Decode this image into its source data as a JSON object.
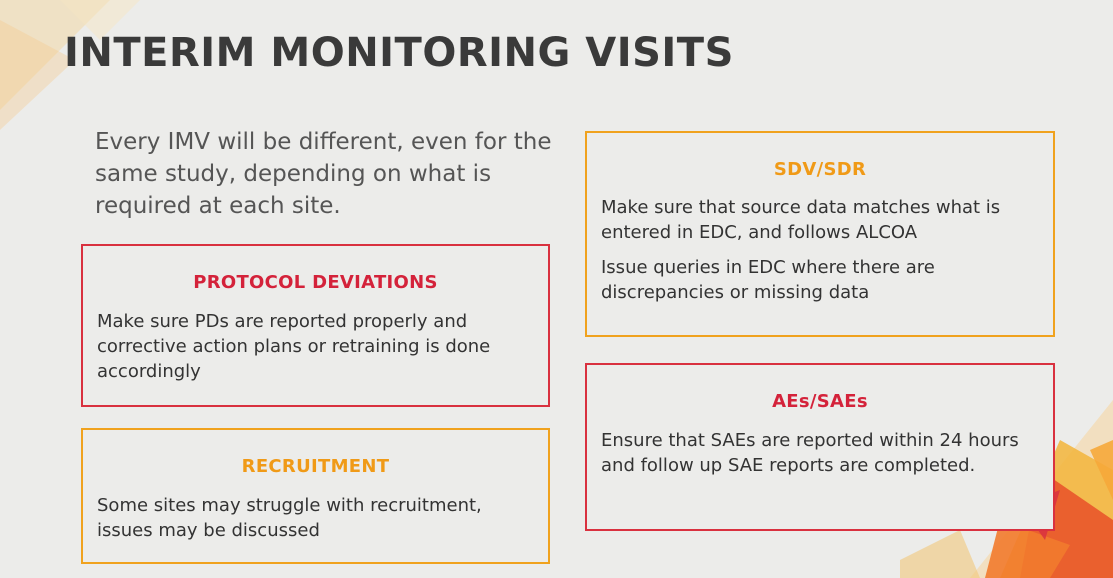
{
  "slide": {
    "title": "INTERIM MONITORING VISITS",
    "intro": "Every IMV will be different, even for the same study, depending on what is required at each site."
  },
  "cards": {
    "protocol_deviations": {
      "heading": "PROTOCOL DEVIATIONS",
      "body": "Make sure PDs are reported properly and corrective action plans or retraining is done accordingly"
    },
    "recruitment": {
      "heading": "RECRUITMENT",
      "body": "Some sites may struggle with recruitment, issues may be discussed"
    },
    "sdv_sdr": {
      "heading": "SDV/SDR",
      "body1": "Make sure that source data matches what is entered in EDC, and follows ALCOA",
      "body2": "Issue queries in EDC where there are discrepancies or missing data"
    },
    "aes_saes": {
      "heading": "AEs/SAEs",
      "body": "Ensure that SAEs are reported within 24 hours and follow up SAE reports are completed."
    }
  },
  "colors": {
    "red_accent": "#d4223a",
    "orange_accent": "#f09a17",
    "background": "#ececea"
  }
}
